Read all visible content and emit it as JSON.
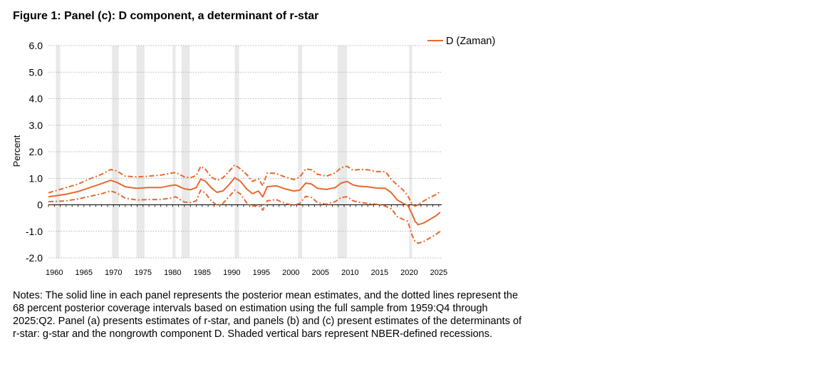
{
  "title": "Figure 1: Panel (c): D component, a determinant of r-star",
  "notes": "Notes: The solid line in each panel represents the posterior mean estimates, and the dotted lines represent the 68 percent posterior coverage intervals based on estimation using the full sample from 1959:Q4 through 2025:Q2. Panel (a) presents estimates of r-star, and panels (b) and (c) present estimates of the determinants of r-star: g-star and the nongrowth component D. Shaded vertical bars represent NBER-defined recessions.",
  "chart_data": {
    "type": "line",
    "title": "Figure 1: Panel (c): D component, a determinant of r-star",
    "xlabel": "",
    "ylabel": "Percent",
    "xlim": [
      1959.0,
      2025.5
    ],
    "ylim": [
      -2.0,
      6.0
    ],
    "yticks": [
      6.0,
      5.0,
      4.0,
      3.0,
      2.0,
      1.0,
      0,
      -1.0,
      -2.0
    ],
    "yticklabels": [
      "6.0",
      "5.0",
      "4.0",
      "3.0",
      "2.0",
      "1.0",
      "0",
      "-1.0",
      "-2.0"
    ],
    "xticks": [
      1960,
      1965,
      1970,
      1975,
      1980,
      1985,
      1990,
      1995,
      2000,
      2005,
      2010,
      2015,
      2020,
      2025
    ],
    "xticklabels": [
      "1960",
      "1965",
      "1970",
      "1975",
      "1980",
      "1985",
      "1990",
      "1995",
      "2000",
      "2005",
      "2010",
      "2015",
      "2020",
      "2025"
    ],
    "grid": true,
    "legend": "top-right",
    "color": "#e8692c",
    "recession_color": "#e9e9e9",
    "recessions": [
      [
        1960.25,
        1961.0
      ],
      [
        1969.75,
        1970.9
      ],
      [
        1973.9,
        1975.25
      ],
      [
        1980.0,
        1980.5
      ],
      [
        1981.5,
        1982.9
      ],
      [
        1990.5,
        1991.25
      ],
      [
        2001.2,
        2001.9
      ],
      [
        2007.9,
        2009.5
      ],
      [
        2020.0,
        2020.5
      ]
    ],
    "series": [
      {
        "name": "D (Zaman)",
        "style": "solid",
        "x": [
          1959.0,
          1960.5,
          1962,
          1964,
          1966,
          1968,
          1969.5,
          1970.5,
          1972,
          1974,
          1976,
          1978,
          1979.5,
          1980.5,
          1982,
          1983,
          1984,
          1984.75,
          1985.5,
          1986.5,
          1987.5,
          1988.5,
          1989.5,
          1990.5,
          1991.5,
          1992.5,
          1993.5,
          1994.5,
          1995.25,
          1996,
          1997.5,
          1999,
          2000.5,
          2001.5,
          2002.5,
          2003.5,
          2004.5,
          2006,
          2007.5,
          2008.5,
          2009.5,
          2010.5,
          2011.5,
          2013,
          2014.5,
          2016,
          2017,
          2018,
          2019,
          2019.75,
          2020.5,
          2021,
          2021.5,
          2022.5,
          2023.5,
          2024.5,
          2025.25
        ],
        "y": [
          0.3,
          0.35,
          0.4,
          0.5,
          0.65,
          0.8,
          0.92,
          0.85,
          0.68,
          0.62,
          0.65,
          0.65,
          0.72,
          0.75,
          0.6,
          0.57,
          0.65,
          0.97,
          0.9,
          0.65,
          0.47,
          0.52,
          0.75,
          1.02,
          0.88,
          0.6,
          0.42,
          0.52,
          0.3,
          0.68,
          0.72,
          0.6,
          0.52,
          0.55,
          0.82,
          0.78,
          0.62,
          0.58,
          0.65,
          0.82,
          0.88,
          0.75,
          0.7,
          0.68,
          0.63,
          0.62,
          0.45,
          0.18,
          0.05,
          -0.02,
          -0.35,
          -0.62,
          -0.75,
          -0.68,
          -0.55,
          -0.42,
          -0.28
        ]
      },
      {
        "name": "",
        "style": "dashdot",
        "x": [
          1959.0,
          1960.5,
          1962,
          1964,
          1966,
          1968,
          1969.5,
          1970.5,
          1972,
          1974,
          1976,
          1978,
          1979.5,
          1980.5,
          1982,
          1983,
          1984,
          1984.75,
          1985.5,
          1986.5,
          1987.5,
          1988.5,
          1989.5,
          1990.5,
          1991.5,
          1992.5,
          1993.5,
          1994.5,
          1995.25,
          1996,
          1997.5,
          1999,
          2000.5,
          2001.5,
          2002.5,
          2003.5,
          2004.5,
          2006,
          2007.5,
          2008.5,
          2009.5,
          2010.5,
          2011.5,
          2013,
          2014.5,
          2016,
          2017,
          2018,
          2019,
          2019.75,
          2020.5,
          2021,
          2021.5,
          2022.5,
          2023.5,
          2024.5,
          2025.25
        ],
        "y": [
          0.45,
          0.55,
          0.65,
          0.78,
          0.98,
          1.15,
          1.33,
          1.28,
          1.08,
          1.05,
          1.08,
          1.12,
          1.18,
          1.22,
          1.05,
          1.02,
          1.1,
          1.45,
          1.35,
          1.05,
          0.92,
          1.02,
          1.25,
          1.5,
          1.35,
          1.15,
          0.88,
          0.98,
          0.72,
          1.2,
          1.18,
          1.05,
          0.95,
          1.05,
          1.35,
          1.32,
          1.15,
          1.08,
          1.2,
          1.4,
          1.45,
          1.3,
          1.33,
          1.32,
          1.25,
          1.25,
          0.95,
          0.75,
          0.55,
          0.35,
          0.02,
          -0.05,
          0.0,
          0.15,
          0.28,
          0.38,
          0.5
        ]
      },
      {
        "name": "",
        "style": "dashdot",
        "x": [
          1959.0,
          1960.5,
          1962,
          1964,
          1966,
          1968,
          1969.5,
          1970.5,
          1972,
          1974,
          1976,
          1978,
          1979.5,
          1980.5,
          1982,
          1983,
          1984,
          1984.75,
          1985.5,
          1986.5,
          1987.5,
          1988.5,
          1989.5,
          1990.5,
          1991.5,
          1992.5,
          1993.5,
          1994.5,
          1995.25,
          1996,
          1997.5,
          1999,
          2000.5,
          2001.5,
          2002.5,
          2003.5,
          2004.5,
          2006,
          2007.5,
          2008.5,
          2009.5,
          2010.5,
          2011.5,
          2013,
          2014.5,
          2016,
          2017,
          2018,
          2019,
          2019.75,
          2020.5,
          2021,
          2021.5,
          2022.5,
          2023.5,
          2024.5,
          2025.25
        ],
        "y": [
          0.12,
          0.13,
          0.15,
          0.22,
          0.32,
          0.42,
          0.52,
          0.45,
          0.25,
          0.18,
          0.2,
          0.2,
          0.25,
          0.3,
          0.1,
          0.08,
          0.15,
          0.55,
          0.45,
          0.15,
          -0.02,
          0.05,
          0.3,
          0.55,
          0.4,
          0.08,
          -0.05,
          -0.02,
          -0.2,
          0.15,
          0.2,
          0.05,
          -0.02,
          0.05,
          0.32,
          0.28,
          0.08,
          0.02,
          0.12,
          0.28,
          0.3,
          0.15,
          0.1,
          0.05,
          0.02,
          -0.05,
          -0.15,
          -0.45,
          -0.55,
          -0.62,
          -1.15,
          -1.38,
          -1.45,
          -1.38,
          -1.25,
          -1.12,
          -1.0
        ]
      }
    ]
  }
}
